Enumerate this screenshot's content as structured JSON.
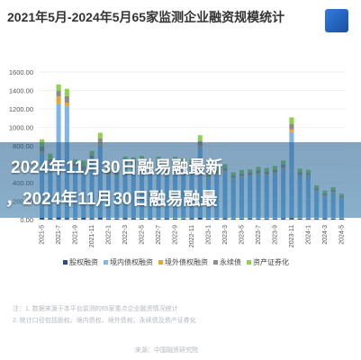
{
  "page": {
    "title": "2021年5月-2024年5月65家监测企业融资规模统计",
    "banner_line1": "2024年11月30日融易融最新",
    "banner_line2": "，2024年11月30日融易融最",
    "faded_line1": "注：1. 数据来源于本平台监测的65家重点企业融资情况统计",
    "faded_line2": "2. 统计口径包括股权、境内债权、境外债权、永续债及资产证券化",
    "faded_line3": "来源：中国融资研究院"
  },
  "chart_data": {
    "type": "bar",
    "stacked": true,
    "title": "2021年5月-2024年5月65家监测企业融资规模统计",
    "xlabel": "",
    "ylabel": "",
    "ylim": [
      0,
      1600
    ],
    "yticks": [
      "0.00",
      "200.00",
      "400.00",
      "600.00",
      "800.00",
      "1000.00",
      "1200.00",
      "1400.00",
      "1600.00"
    ],
    "grid": true,
    "legend_position": "bottom",
    "categories": [
      "2021-05",
      "2021-06",
      "2021-07",
      "2021-08",
      "2021-09",
      "2021-10",
      "2021-11",
      "2021-12",
      "2022-01",
      "2022-02",
      "2022-03",
      "2022-04",
      "2022-05",
      "2022-06",
      "2022-07",
      "2022-08",
      "2022-09",
      "2022-10",
      "2022-11",
      "2022-12",
      "2023-01",
      "2023-02",
      "2023-03",
      "2023-04",
      "2023-05",
      "2023-06",
      "2023-07",
      "2023-08",
      "2023-09",
      "2023-10",
      "2023-11",
      "2023-12",
      "2024-01",
      "2024-02",
      "2024-03",
      "2024-04",
      "2024-05"
    ],
    "xtick_labels": [
      "2021-5",
      "2021-7",
      "2021-9",
      "2021-11",
      "2022-1",
      "2022-3",
      "2022-5",
      "2022-7",
      "2022-9",
      "2022-11",
      "2023-1",
      "2023-3",
      "2023-5",
      "2023-7",
      "2023-9",
      "2023-11",
      "2024-1",
      "2024-3",
      "2024-5"
    ],
    "series": [
      {
        "name": "股权融资",
        "color": "#2c4f8a",
        "values": [
          20,
          15,
          25,
          18,
          12,
          20,
          15,
          22,
          10,
          12,
          18,
          15,
          10,
          14,
          12,
          16,
          10,
          12,
          15,
          20,
          10,
          12,
          15,
          12,
          10,
          14,
          12,
          10,
          12,
          15,
          18,
          12,
          10,
          12,
          14,
          12,
          10
        ]
      },
      {
        "name": "境内债权融资",
        "color": "#7fb6e6",
        "values": [
          700,
          580,
          1230,
          1210,
          560,
          500,
          620,
          780,
          470,
          460,
          560,
          560,
          600,
          520,
          590,
          480,
          590,
          560,
          560,
          760,
          440,
          480,
          500,
          430,
          450,
          460,
          480,
          470,
          490,
          530,
          930,
          460,
          460,
          300,
          240,
          280,
          220
        ]
      },
      {
        "name": "境外债权融资",
        "color": "#e0a83a",
        "values": [
          20,
          20,
          80,
          40,
          10,
          20,
          15,
          30,
          10,
          10,
          15,
          20,
          10,
          15,
          10,
          10,
          10,
          15,
          10,
          25,
          10,
          10,
          15,
          10,
          10,
          10,
          10,
          10,
          10,
          15,
          30,
          10,
          10,
          10,
          10,
          10,
          10
        ]
      },
      {
        "name": "永续债",
        "color": "#8c8c8c",
        "values": [
          50,
          40,
          60,
          70,
          30,
          40,
          45,
          50,
          30,
          25,
          40,
          35,
          30,
          35,
          30,
          35,
          30,
          35,
          30,
          50,
          25,
          30,
          30,
          25,
          30,
          25,
          30,
          30,
          30,
          35,
          60,
          30,
          25,
          20,
          20,
          20,
          15
        ]
      },
      {
        "name": "资产证券化",
        "color": "#8fd14f",
        "values": [
          80,
          60,
          70,
          80,
          40,
          60,
          50,
          60,
          40,
          35,
          50,
          45,
          40,
          45,
          40,
          45,
          40,
          45,
          40,
          60,
          35,
          40,
          40,
          35,
          40,
          35,
          40,
          40,
          40,
          45,
          70,
          40,
          35,
          30,
          30,
          30,
          25
        ]
      }
    ]
  }
}
